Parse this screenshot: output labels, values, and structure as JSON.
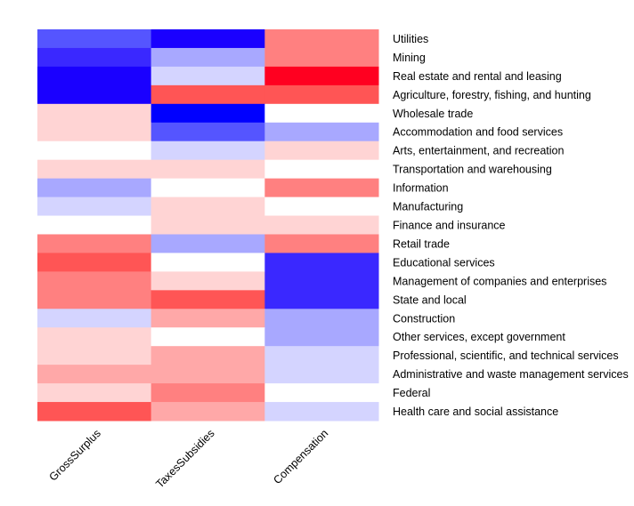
{
  "chart_data": {
    "type": "heatmap",
    "title": "",
    "columns": [
      "GrossSurplus",
      "TaxesSubsidies",
      "Compensation"
    ],
    "rows": [
      "Utilities",
      "Mining",
      "Real estate and rental and leasing",
      "Agriculture, forestry, fishing, and hunting",
      "Wholesale trade",
      "Accommodation and food services",
      "Arts, entertainment, and recreation",
      "Transportation and warehousing",
      "Information",
      "Manufacturing",
      "Finance and insurance",
      "Retail trade",
      "Educational services",
      "Management of companies and enterprises",
      "State and local",
      "Construction",
      "Other services, except government",
      "Professional, scientific, and technical services",
      "Administrative and waste management services",
      "Federal",
      "Health care and social assistance"
    ],
    "values": [
      [
        -3,
        -4.5,
        3
      ],
      [
        -4,
        -2,
        3
      ],
      [
        -4.5,
        -1,
        5
      ],
      [
        -4.5,
        4,
        4
      ],
      [
        1,
        -5,
        0
      ],
      [
        1,
        -3,
        -2
      ],
      [
        0,
        -1,
        1
      ],
      [
        1,
        1,
        0
      ],
      [
        -2,
        0,
        3
      ],
      [
        -1,
        1,
        0
      ],
      [
        0,
        1,
        1
      ],
      [
        3,
        -2,
        3
      ],
      [
        4,
        0,
        -4
      ],
      [
        3,
        1,
        -4
      ],
      [
        3,
        4,
        -4
      ],
      [
        -1,
        2,
        -2
      ],
      [
        1,
        0,
        -2
      ],
      [
        1,
        2,
        -1
      ],
      [
        2,
        2,
        -1
      ],
      [
        1,
        3,
        0
      ],
      [
        4,
        2,
        -1
      ]
    ],
    "color_scale": {
      "-5": "#0000FF",
      "-4.5": "#1A00FF",
      "-4": "#3A28FF",
      "-3": "#5555FF",
      "-2": "#A8A8FF",
      "-1": "#D4D4FF",
      "0": "#FFFFFF",
      "1": "#FFD4D4",
      "2": "#FFA8A8",
      "3": "#FF8080",
      "4": "#FF5555",
      "5": "#FF0020"
    },
    "legend": "none"
  }
}
